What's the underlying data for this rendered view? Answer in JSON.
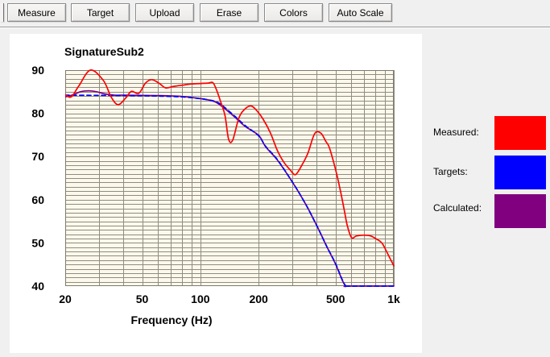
{
  "window": {
    "background": "#f0f0f0"
  },
  "toolbar": {
    "buttons": [
      {
        "label": "Measure"
      },
      {
        "label": "Target"
      },
      {
        "label": "Upload"
      },
      {
        "label": "Erase"
      },
      {
        "label": "Colors"
      },
      {
        "label": "Auto Scale"
      }
    ]
  },
  "legend": {
    "items": [
      {
        "label": "Measured:",
        "color": "#ff0000"
      },
      {
        "label": "Targets:",
        "color": "#0000ff"
      },
      {
        "label": "Calculated:",
        "color": "#800080"
      }
    ]
  },
  "chart_data": {
    "type": "line",
    "title": "SignatureSub2",
    "xlabel": "Frequency (Hz)",
    "ylabel": "",
    "x_scale": "log",
    "xlim": [
      20,
      1000
    ],
    "ylim": [
      40,
      90
    ],
    "x_ticks": [
      {
        "value": 20,
        "label": "20"
      },
      {
        "value": 50,
        "label": "50"
      },
      {
        "value": 100,
        "label": "100"
      },
      {
        "value": 200,
        "label": "200"
      },
      {
        "value": 500,
        "label": "500"
      },
      {
        "value": 1000,
        "label": "1k"
      }
    ],
    "y_ticks": [
      {
        "value": 90,
        "label": "90"
      },
      {
        "value": 80,
        "label": "80"
      },
      {
        "value": 70,
        "label": "70"
      },
      {
        "value": 60,
        "label": "60"
      },
      {
        "value": 50,
        "label": "50"
      },
      {
        "value": 40,
        "label": "40"
      }
    ],
    "x_gridlines": [
      20,
      30,
      40,
      50,
      60,
      70,
      80,
      90,
      100,
      200,
      300,
      400,
      500,
      600,
      700,
      800,
      900,
      1000
    ],
    "y_grid_step": 1,
    "grid": true,
    "legend_position": "right",
    "plot_bg": "#fcf9ec",
    "grid_color": "#8f8d80",
    "series": [
      {
        "name": "Calculated",
        "color": "#800080",
        "line_style": "solid",
        "x": [
          20,
          22,
          24,
          26.5,
          29,
          32,
          36,
          40,
          60,
          80,
          100,
          110,
          120,
          131,
          150,
          170,
          200,
          218,
          250,
          300,
          350,
          400,
          450,
          500,
          545,
          566,
          580,
          1000
        ],
        "y": [
          83.8,
          84.3,
          85,
          85.2,
          85,
          84.5,
          84.2,
          84.2,
          84.1,
          83.9,
          83.4,
          83.1,
          82.6,
          81.4,
          79.2,
          77,
          74.9,
          72.2,
          69.2,
          64,
          59,
          54,
          49.2,
          45.1,
          41.1,
          40,
          40,
          40
        ]
      },
      {
        "name": "Targets",
        "color": "#0000ff",
        "line_style": "dashed",
        "x": [
          20,
          40,
          60,
          80,
          100,
          110,
          120,
          130,
          150,
          170,
          200,
          218,
          250,
          300,
          350,
          400,
          450,
          500,
          545,
          566,
          580,
          1000
        ],
        "y": [
          84.2,
          84.1,
          84,
          83.8,
          83.4,
          83.1,
          82.7,
          81.8,
          79.4,
          77.2,
          74.8,
          72.3,
          69.3,
          64,
          59,
          54,
          49.2,
          45.2,
          41.2,
          40,
          40,
          40
        ]
      },
      {
        "name": "Measured",
        "color": "#ff0000",
        "line_style": "solid",
        "x": [
          20,
          21.5,
          23.5,
          27,
          31.5,
          34.5,
          37.5,
          41,
          44,
          48,
          52,
          56,
          61,
          66,
          72,
          80,
          90,
          100,
          110,
          116,
          121,
          127,
          134,
          140,
          147,
          158,
          170,
          183,
          196,
          210,
          230,
          250,
          270,
          290,
          310,
          335,
          360,
          390,
          420,
          445,
          465,
          500,
          530,
          555,
          575,
          605,
          640,
          700,
          760,
          820,
          870,
          930,
          1000
        ],
        "y": [
          84.3,
          83.8,
          86.3,
          90,
          87.6,
          83.8,
          82,
          83.5,
          85.1,
          84.6,
          87,
          87.8,
          87,
          85.9,
          86.2,
          86.5,
          86.8,
          86.9,
          87,
          87.1,
          85.5,
          82.8,
          79.5,
          74,
          73.8,
          78.9,
          81,
          81.7,
          80.6,
          78.8,
          75.5,
          71.4,
          68.7,
          67,
          65.8,
          68,
          70.8,
          75.3,
          75.4,
          73.5,
          72,
          67,
          62,
          57.5,
          54,
          51.2,
          51.6,
          51.8,
          51.6,
          50.8,
          49.9,
          47.5,
          44.7
        ]
      }
    ]
  }
}
